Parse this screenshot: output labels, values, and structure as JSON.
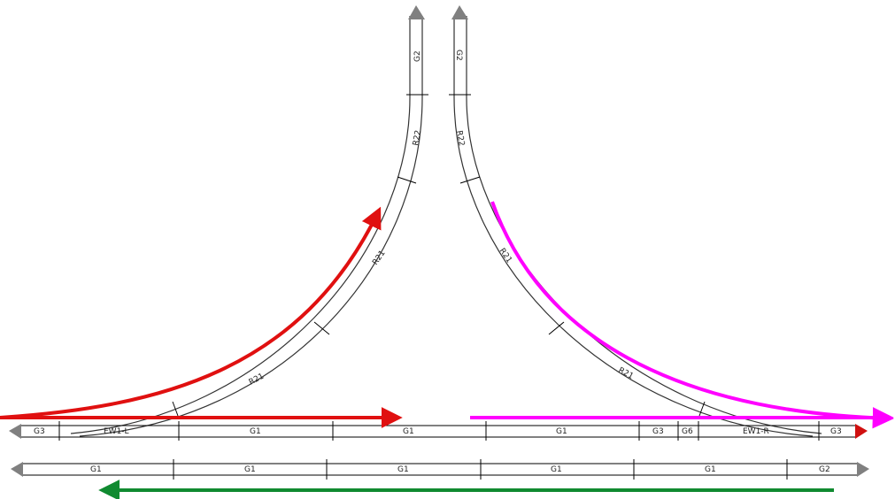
{
  "track_labels": {
    "left_spur": {
      "top": "G2",
      "mid": "R22",
      "low": "R21",
      "bottom": "R21"
    },
    "right_spur": {
      "top": "G2",
      "mid": "R22",
      "low": "R21",
      "bottom": "R21"
    },
    "upper_main": [
      "G3",
      "EW1-L",
      "G1",
      "G1",
      "G1",
      "G3",
      "G6",
      "EW1-R",
      "G3"
    ],
    "lower_main": [
      "G1",
      "G1",
      "G1",
      "G1",
      "G1",
      "G2"
    ]
  },
  "colors": {
    "track": "#000000",
    "track_end_arrow": "#808080",
    "route_red": "#e01010",
    "route_magenta": "#ff00ff",
    "route_green": "#108a30"
  }
}
